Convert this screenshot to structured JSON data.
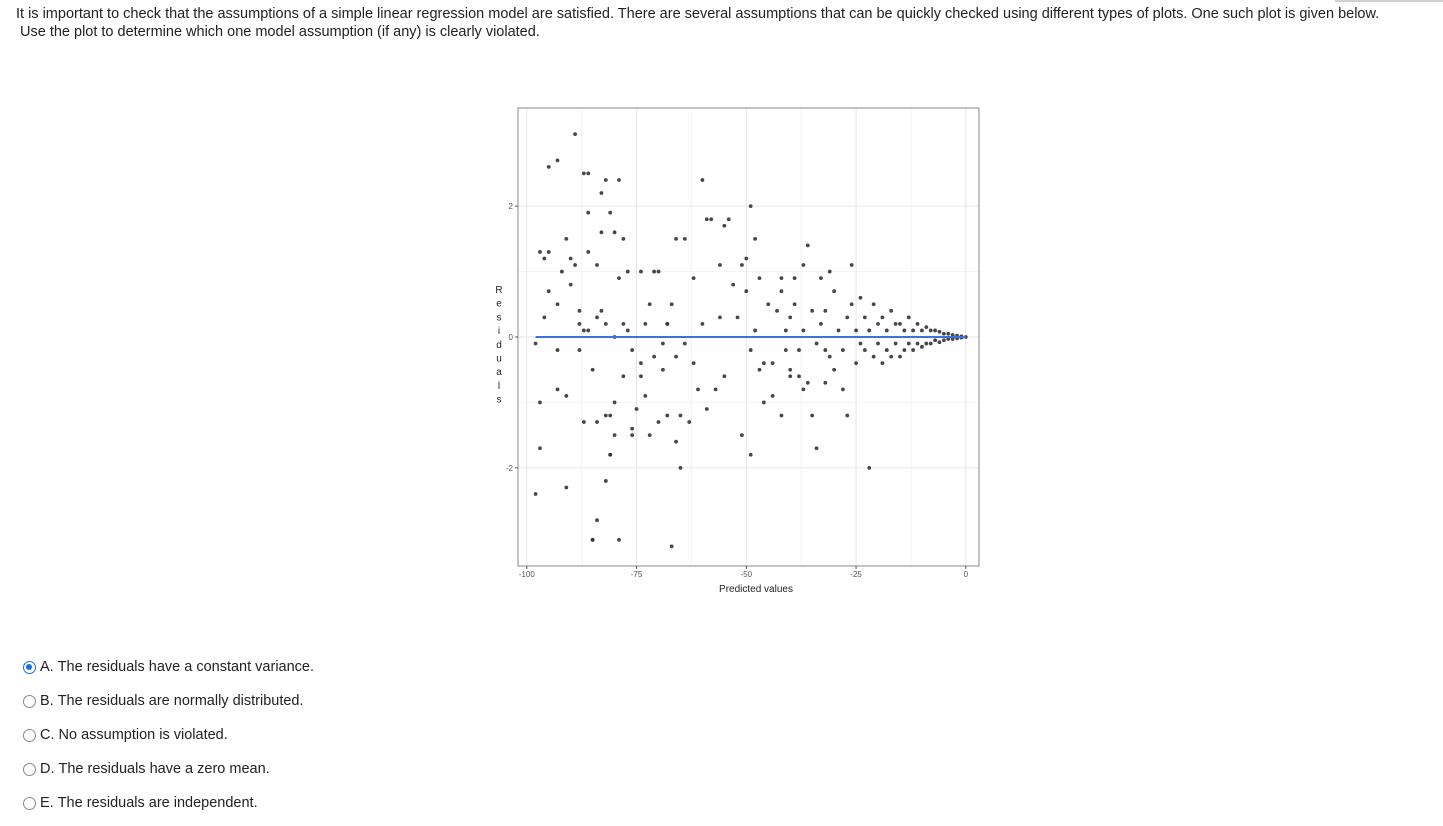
{
  "question": {
    "line1": "It is important to check that the assumptions of a simple linear regression model are satisfied.  There are several assumptions that can be quickly checked using different types of plots.  One such plot is given below.",
    "line2": "Use the plot to determine which one model assumption (if any) is clearly violated."
  },
  "chart_data": {
    "type": "scatter",
    "title": "",
    "xlabel": "Predicted values",
    "ylabel": "Residuals",
    "xlim": [
      -102,
      3
    ],
    "ylim": [
      -3.5,
      3.5
    ],
    "x_ticks": [
      -100,
      -75,
      -50,
      -25,
      0
    ],
    "x_tick_labels": [
      "-100",
      "-75",
      "-50",
      "-25",
      "0"
    ],
    "y_ticks": [
      -2,
      0,
      2
    ],
    "y_tick_labels": [
      "-2",
      "0",
      "2"
    ],
    "grid": true,
    "reference_line": {
      "y": 0,
      "color": "#3f6fe0"
    },
    "point_color": "#333333",
    "points": [
      [
        -98,
        -0.1
      ],
      [
        -98,
        -2.4
      ],
      [
        -97,
        -1.7
      ],
      [
        -97,
        1.3
      ],
      [
        -97,
        -1.0
      ],
      [
        -96,
        0.3
      ],
      [
        -96,
        1.2
      ],
      [
        -95,
        2.6
      ],
      [
        -95,
        1.3
      ],
      [
        -95,
        0.7
      ],
      [
        -93,
        -0.2
      ],
      [
        -93,
        -0.8
      ],
      [
        -93,
        2.7
      ],
      [
        -93,
        0.5
      ],
      [
        -92,
        1.0
      ],
      [
        -91,
        -2.3
      ],
      [
        -91,
        -0.9
      ],
      [
        -91,
        1.5
      ],
      [
        -90,
        1.2
      ],
      [
        -90,
        0.8
      ],
      [
        -89,
        3.1
      ],
      [
        -89,
        1.1
      ],
      [
        -88,
        0.4
      ],
      [
        -88,
        0.2
      ],
      [
        -88,
        -0.2
      ],
      [
        -87,
        2.5
      ],
      [
        -87,
        0.1
      ],
      [
        -87,
        -1.3
      ],
      [
        -86,
        1.9
      ],
      [
        -86,
        2.5
      ],
      [
        -86,
        1.3
      ],
      [
        -86,
        0.1
      ],
      [
        -85,
        -0.5
      ],
      [
        -85,
        -3.1
      ],
      [
        -85,
        -3.1
      ],
      [
        -84,
        -1.3
      ],
      [
        -84,
        1.1
      ],
      [
        -84,
        0.3
      ],
      [
        -84,
        -2.8
      ],
      [
        -83,
        2.2
      ],
      [
        -83,
        0.4
      ],
      [
        -83,
        1.6
      ],
      [
        -82,
        -2.2
      ],
      [
        -82,
        -1.2
      ],
      [
        -82,
        2.4
      ],
      [
        -82,
        0.2
      ],
      [
        -81,
        -1.8
      ],
      [
        -81,
        -1.8
      ],
      [
        -81,
        1.9
      ],
      [
        -81,
        -1.2
      ],
      [
        -80,
        1.6
      ],
      [
        -80,
        0.0
      ],
      [
        -80,
        -1.0
      ],
      [
        -80,
        -1.5
      ],
      [
        -79,
        0.9
      ],
      [
        -79,
        -3.1
      ],
      [
        -79,
        2.4
      ],
      [
        -78,
        -0.6
      ],
      [
        -78,
        0.2
      ],
      [
        -78,
        1.5
      ],
      [
        -77,
        1.0
      ],
      [
        -77,
        0.1
      ],
      [
        -76,
        -1.5
      ],
      [
        -76,
        -0.2
      ],
      [
        -76,
        -1.4
      ],
      [
        -75,
        -1.1
      ],
      [
        -74,
        1.0
      ],
      [
        -74,
        -0.4
      ],
      [
        -74,
        -0.6
      ],
      [
        -73,
        -0.9
      ],
      [
        -73,
        0.2
      ],
      [
        -72,
        -1.5
      ],
      [
        -72,
        0.5
      ],
      [
        -71,
        1.0
      ],
      [
        -71,
        -0.3
      ],
      [
        -70,
        1.0
      ],
      [
        -70,
        -1.3
      ],
      [
        -69,
        -0.1
      ],
      [
        -69,
        -0.5
      ],
      [
        -68,
        0.2
      ],
      [
        -68,
        0.2
      ],
      [
        -68,
        -1.2
      ],
      [
        -67,
        -3.2
      ],
      [
        -67,
        0.5
      ],
      [
        -66,
        1.5
      ],
      [
        -66,
        -1.6
      ],
      [
        -66,
        -0.3
      ],
      [
        -65,
        -2.0
      ],
      [
        -65,
        -1.2
      ],
      [
        -64,
        1.5
      ],
      [
        -64,
        -0.1
      ],
      [
        -63,
        -1.3
      ],
      [
        -62,
        0.9
      ],
      [
        -62,
        -0.4
      ],
      [
        -61,
        -0.8
      ],
      [
        -60,
        2.4
      ],
      [
        -60,
        0.2
      ],
      [
        -59,
        -1.1
      ],
      [
        -59,
        1.8
      ],
      [
        -58,
        1.8
      ],
      [
        -57,
        -0.8
      ],
      [
        -56,
        1.1
      ],
      [
        -56,
        0.3
      ],
      [
        -55,
        -0.6
      ],
      [
        -55,
        1.7
      ],
      [
        -54,
        1.8
      ],
      [
        -53,
        0.8
      ],
      [
        -52,
        0.3
      ],
      [
        -51,
        1.1
      ],
      [
        -51,
        -1.5
      ],
      [
        -50,
        0.7
      ],
      [
        -50,
        1.2
      ],
      [
        -49,
        2.0
      ],
      [
        -49,
        -0.2
      ],
      [
        -49,
        -1.8
      ],
      [
        -48,
        0.1
      ],
      [
        -48,
        1.5
      ],
      [
        -47,
        0.9
      ],
      [
        -47,
        -0.5
      ],
      [
        -46,
        -1.0
      ],
      [
        -46,
        -0.4
      ],
      [
        -45,
        0.5
      ],
      [
        -44,
        -0.4
      ],
      [
        -44,
        -0.9
      ],
      [
        -43,
        0.4
      ],
      [
        -42,
        0.9
      ],
      [
        -42,
        0.7
      ],
      [
        -42,
        -1.2
      ],
      [
        -41,
        0.1
      ],
      [
        -41,
        -0.2
      ],
      [
        -40,
        -0.5
      ],
      [
        -40,
        0.3
      ],
      [
        -40,
        -0.6
      ],
      [
        -39,
        0.5
      ],
      [
        -39,
        0.9
      ],
      [
        -38,
        -0.2
      ],
      [
        -38,
        -0.6
      ],
      [
        -37,
        -0.8
      ],
      [
        -37,
        1.1
      ],
      [
        -37,
        0.1
      ],
      [
        -36,
        1.4
      ],
      [
        -36,
        -0.7
      ],
      [
        -35,
        0.4
      ],
      [
        -35,
        -1.2
      ],
      [
        -34,
        -0.1
      ],
      [
        -34,
        -1.7
      ],
      [
        -33,
        0.9
      ],
      [
        -33,
        0.2
      ],
      [
        -32,
        -0.2
      ],
      [
        -32,
        -0.7
      ],
      [
        -32,
        0.4
      ],
      [
        -31,
        1.0
      ],
      [
        -31,
        -0.3
      ],
      [
        -30,
        0.7
      ],
      [
        -30,
        -0.5
      ],
      [
        -29,
        0.1
      ],
      [
        -28,
        -0.2
      ],
      [
        -28,
        -0.8
      ],
      [
        -27,
        0.3
      ],
      [
        -27,
        -1.2
      ],
      [
        -26,
        1.1
      ],
      [
        -26,
        0.5
      ],
      [
        -25,
        0.1
      ],
      [
        -25,
        -0.4
      ],
      [
        -24,
        -0.1
      ],
      [
        -24,
        0.6
      ],
      [
        -23,
        0.3
      ],
      [
        -23,
        -0.2
      ],
      [
        -22,
        0.1
      ],
      [
        -22,
        -2.0
      ],
      [
        -21,
        0.5
      ],
      [
        -21,
        -0.3
      ],
      [
        -20,
        0.2
      ],
      [
        -20,
        -0.1
      ],
      [
        -19,
        0.3
      ],
      [
        -19,
        -0.4
      ],
      [
        -18,
        0.1
      ],
      [
        -18,
        -0.2
      ],
      [
        -17,
        0.4
      ],
      [
        -17,
        -0.3
      ],
      [
        -16,
        0.2
      ],
      [
        -16,
        -0.1
      ],
      [
        -15,
        0.2
      ],
      [
        -15,
        -0.3
      ],
      [
        -14,
        0.1
      ],
      [
        -14,
        -0.2
      ],
      [
        -13,
        0.3
      ],
      [
        -13,
        -0.1
      ],
      [
        -12,
        0.1
      ],
      [
        -12,
        -0.2
      ],
      [
        -11,
        0.2
      ],
      [
        -11,
        -0.1
      ],
      [
        -10,
        0.1
      ],
      [
        -10,
        -0.15
      ],
      [
        -9,
        0.15
      ],
      [
        -9,
        -0.1
      ],
      [
        -8,
        0.1
      ],
      [
        -8,
        -0.1
      ],
      [
        -7,
        0.1
      ],
      [
        -7,
        -0.05
      ],
      [
        -6,
        0.08
      ],
      [
        -6,
        -0.08
      ],
      [
        -5,
        0.05
      ],
      [
        -5,
        -0.05
      ],
      [
        -4,
        0.05
      ],
      [
        -4,
        -0.03
      ],
      [
        -3,
        0.03
      ],
      [
        -3,
        -0.03
      ],
      [
        -2,
        0.02
      ],
      [
        -2,
        -0.02
      ],
      [
        -1,
        0.01
      ],
      [
        -1,
        -0.01
      ],
      [
        0,
        0.0
      ]
    ]
  },
  "answer_options": [
    {
      "letter": "A.",
      "text": "The residuals have a constant variance.",
      "selected": true
    },
    {
      "letter": "B.",
      "text": "The residuals are normally distributed.",
      "selected": false
    },
    {
      "letter": "C.",
      "text": "No assumption is violated.",
      "selected": false
    },
    {
      "letter": "D.",
      "text": "The residuals have a zero mean.",
      "selected": false
    },
    {
      "letter": "E.",
      "text": "The residuals are independent.",
      "selected": false
    }
  ],
  "colors": {
    "accent": "#1a6fd9",
    "reference_line": "#3f6fe0"
  }
}
